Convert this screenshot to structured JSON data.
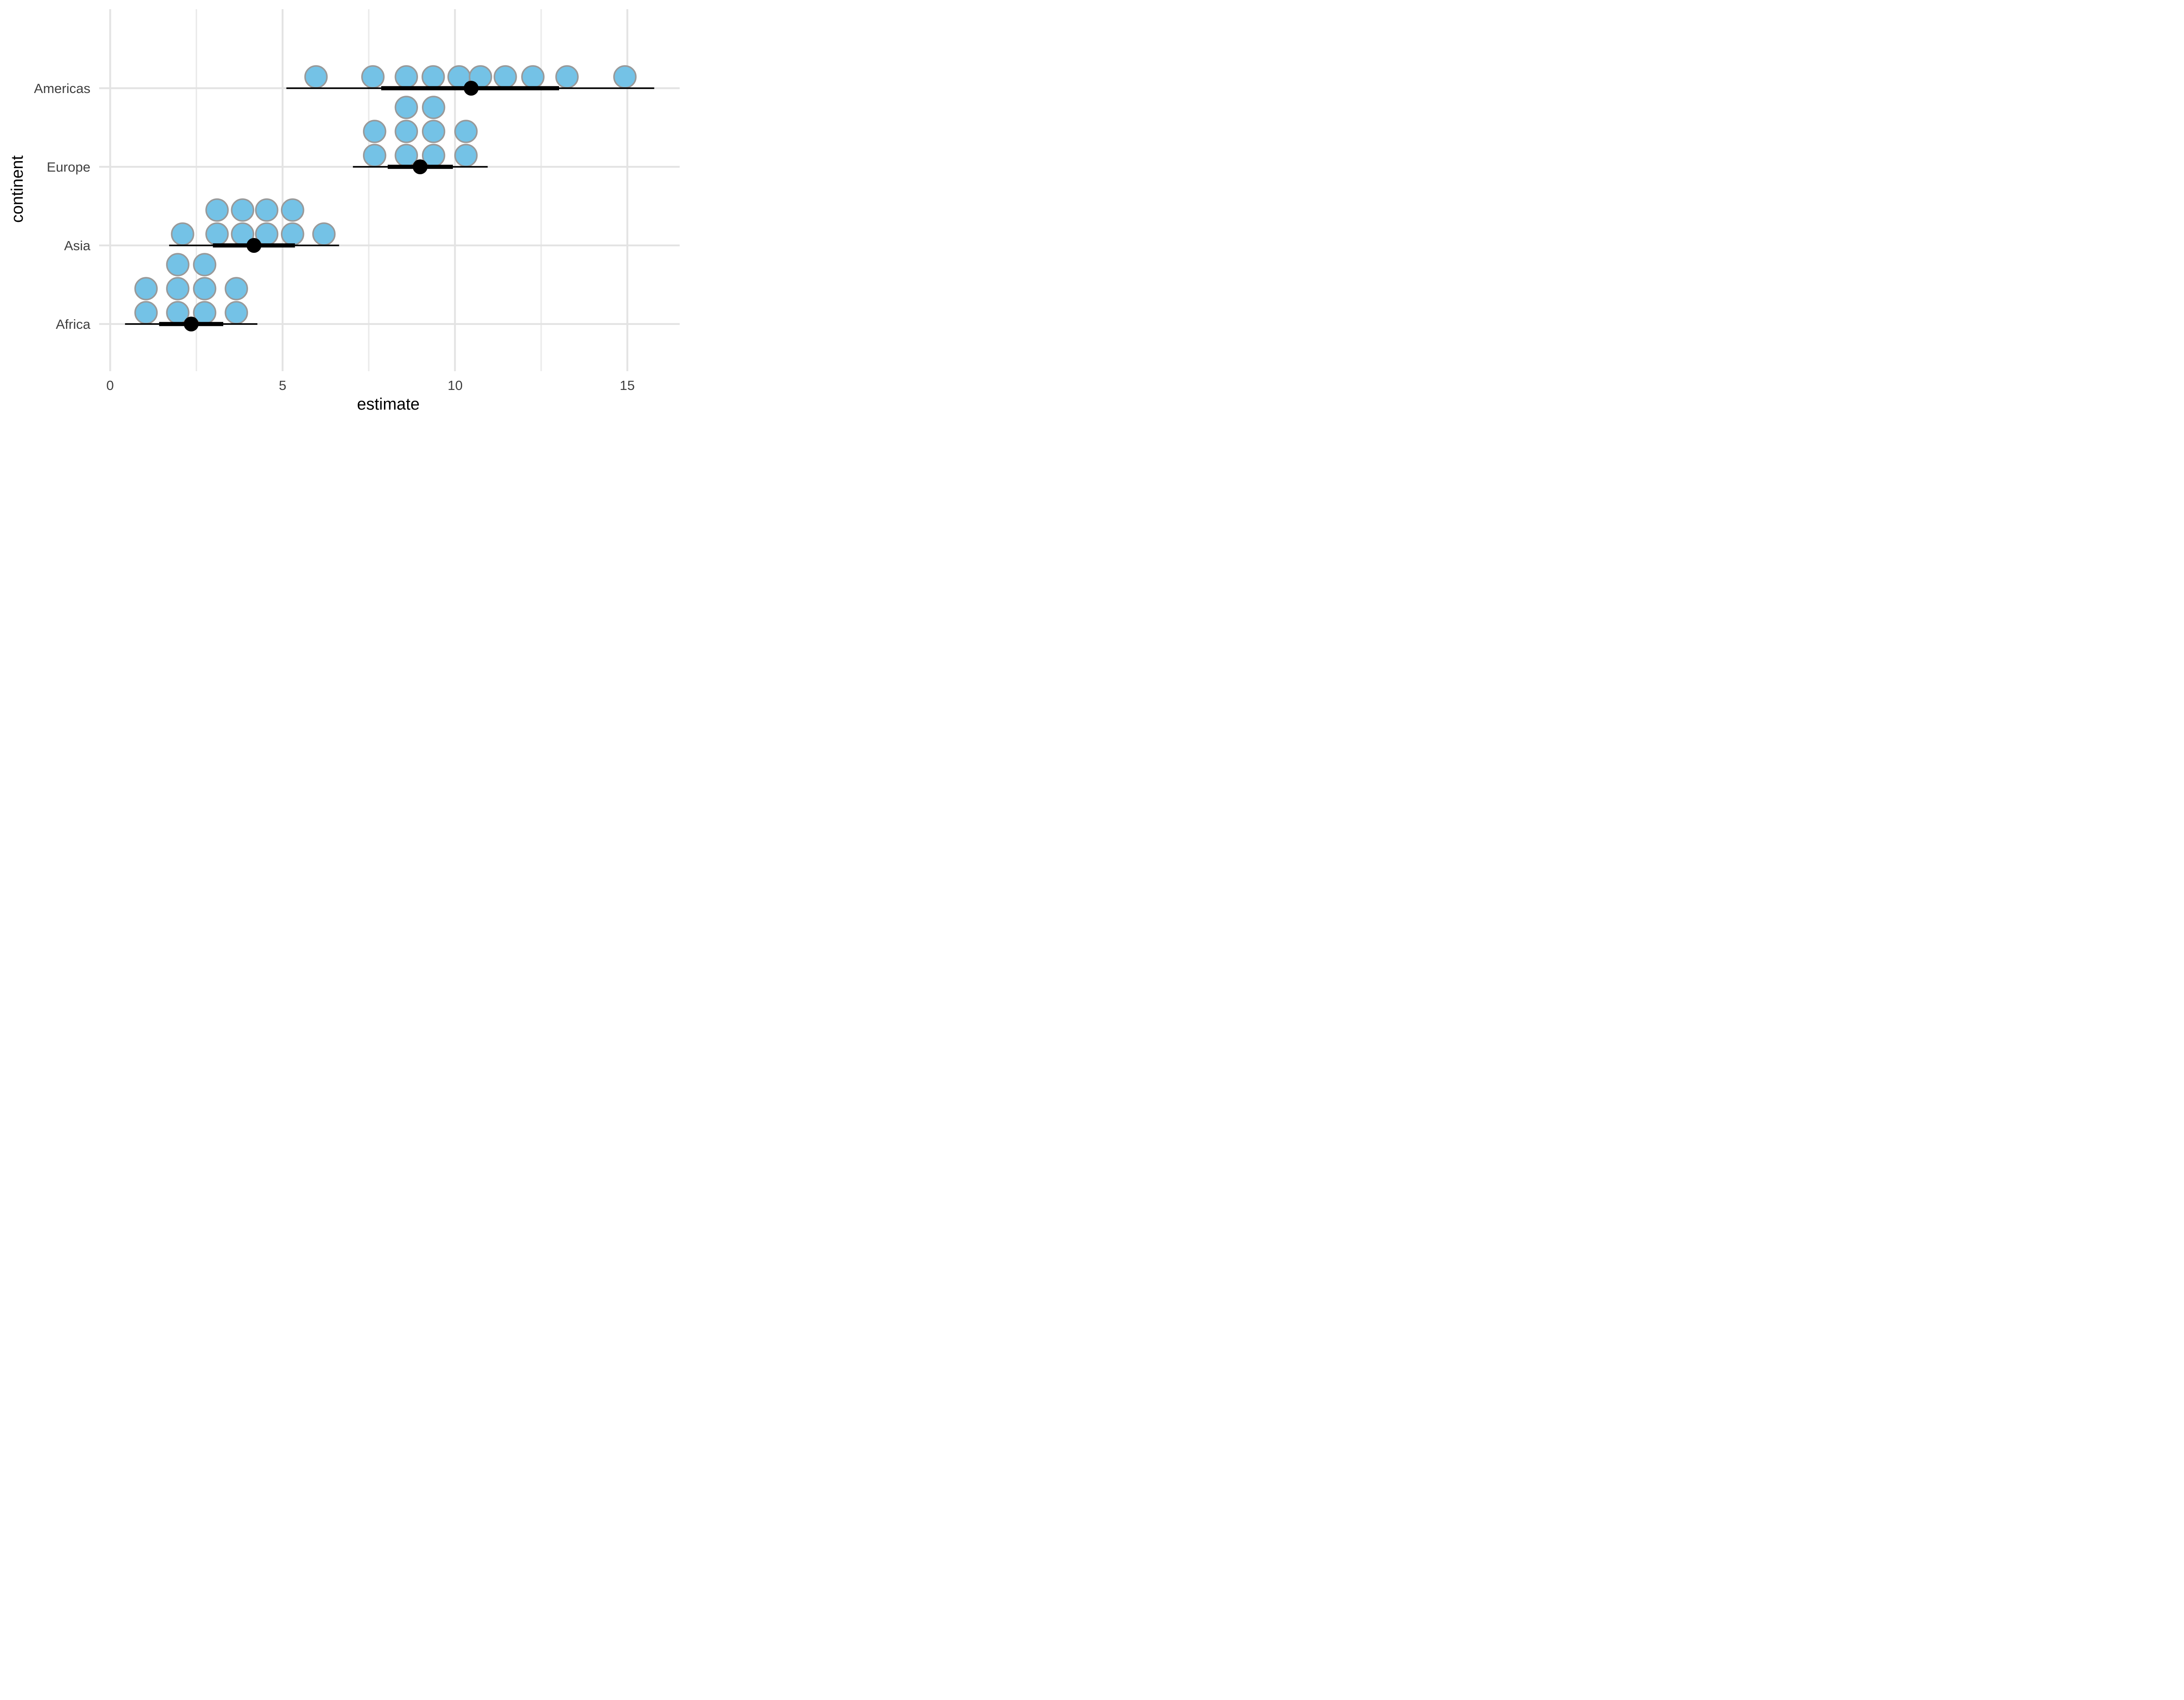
{
  "chart_data": {
    "type": "scatter",
    "variant": "dots_pointinterval",
    "title": "",
    "xlabel": "estimate",
    "ylabel": "continent",
    "grid": true,
    "legend": false,
    "x_axis": {
      "major_ticks": [
        0,
        5,
        10,
        15
      ],
      "tick_labels": [
        "0",
        "5",
        "10",
        "15"
      ],
      "minor_ticks": [
        2.5,
        7.5,
        12.5
      ],
      "xlim": [
        -0.32,
        16.6
      ]
    },
    "categories": [
      "Americas",
      "Europe",
      "Asia",
      "Africa"
    ],
    "series": [
      {
        "continent": "Americas",
        "dot_stack_rows": [
          [
            5.97,
            7.62,
            8.59,
            9.37,
            10.12,
            10.74,
            11.46,
            12.26,
            13.25,
            14.93
          ]
        ],
        "point_estimate": 10.47,
        "thick_interval": [
          7.86,
          13.02
        ],
        "thin_interval": [
          5.11,
          15.78
        ]
      },
      {
        "continent": "Europe",
        "dot_stack_rows": [
          [
            7.67,
            8.59,
            9.38,
            10.32
          ],
          [
            7.67,
            8.59,
            9.38,
            10.32
          ],
          [
            8.59,
            9.38
          ]
        ],
        "point_estimate": 8.99,
        "thick_interval": [
          8.05,
          9.94
        ],
        "thin_interval": [
          7.04,
          10.95
        ]
      },
      {
        "continent": "Asia",
        "dot_stack_rows": [
          [
            2.1,
            3.1,
            3.84,
            4.54,
            5.29,
            6.2
          ],
          [
            3.1,
            3.84,
            4.54,
            5.29
          ]
        ],
        "point_estimate": 4.17,
        "thick_interval": [
          2.98,
          5.36
        ],
        "thin_interval": [
          1.71,
          6.64
        ]
      },
      {
        "continent": "Africa",
        "dot_stack_rows": [
          [
            1.04,
            1.96,
            2.74,
            3.66
          ],
          [
            1.04,
            1.96,
            2.74,
            3.66
          ],
          [
            1.96,
            2.74
          ]
        ],
        "point_estimate": 2.35,
        "thick_interval": [
          1.42,
          3.28
        ],
        "thin_interval": [
          0.43,
          4.27
        ]
      }
    ]
  },
  "style": {
    "background": "#ffffff",
    "dot_fill": "#74c2e6",
    "dot_stroke": "#999999",
    "interval_color": "#000000",
    "grid_major_color": "#e3e3e3",
    "grid_minor_color": "#eaeaea",
    "tick_label_color": "#3f3f3f",
    "axis_title_color": "#000000"
  }
}
